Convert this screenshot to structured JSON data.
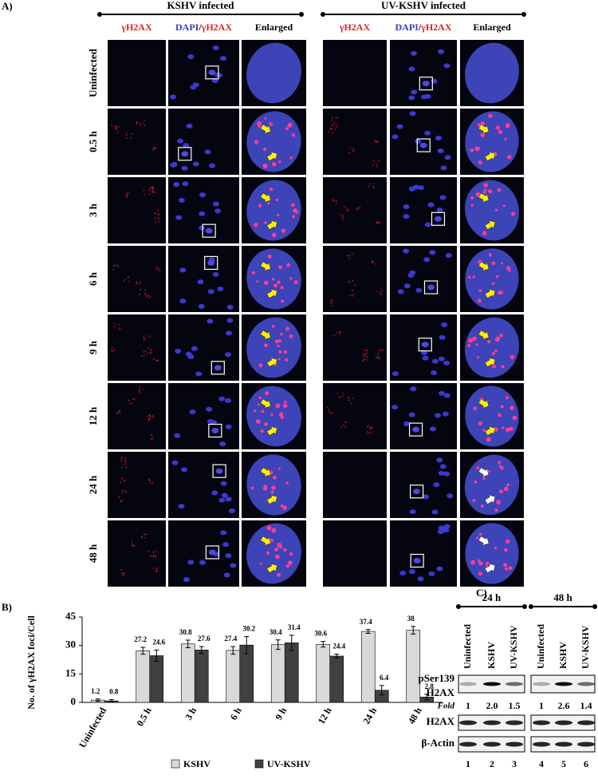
{
  "panel_a": {
    "label": "A)",
    "groups": [
      "KSHV infected",
      "UV-KSHV infected"
    ],
    "column_headers": {
      "red": "γH2AX",
      "merge_blue": "DAPI",
      "merge_sep": "/",
      "merge_red": "γH2AX",
      "enlarged": "Enlarged"
    },
    "rows": [
      "Uninfected",
      "0.5 h",
      "3 h",
      "6 h",
      "9 h",
      "12 h",
      "24 h",
      "48 h"
    ]
  },
  "panel_b_label": "B)",
  "chart_data": {
    "type": "bar",
    "ylabel": "No. of γH2AX foci/Cell",
    "categories": [
      "Uninfected",
      "0.5 h",
      "3 h",
      "6 h",
      "9 h",
      "12 h",
      "24 h",
      "48 h"
    ],
    "series": [
      {
        "name": "KSHV",
        "color": "#d9d9d9",
        "values": [
          1.2,
          27.2,
          30.8,
          27.4,
          30.4,
          30.6,
          37.4,
          38
        ],
        "errors": [
          0.6,
          1.8,
          2,
          2,
          2.5,
          1.5,
          1,
          2
        ]
      },
      {
        "name": "UV-KSHV",
        "color": "#404040",
        "values": [
          0.8,
          24.6,
          27.6,
          30.2,
          31.4,
          24.4,
          6.4,
          2.8
        ],
        "errors": [
          0.6,
          3,
          1.8,
          4.5,
          4,
          1,
          2.5,
          1.5
        ]
      }
    ],
    "ylim": [
      0,
      45
    ],
    "yticks": [
      0,
      15,
      30,
      45
    ],
    "grid": false,
    "legend": "bottom"
  },
  "panel_c": {
    "label": "C)",
    "timepoints": [
      "24 h",
      "48 h"
    ],
    "lanes": [
      "Uninfected",
      "KSHV",
      "UV-KSHV"
    ],
    "row_labels": {
      "pser": "pSer139",
      "pser_h2ax": "H2AX",
      "fold": "Fold",
      "total": "H2AX",
      "actin": "β-Actin"
    },
    "fold_values": [
      "1",
      "2.0",
      "1.5",
      "1",
      "2.6",
      "1.4"
    ],
    "lane_numbers": [
      "1",
      "2",
      "3",
      "4",
      "5",
      "6"
    ]
  }
}
